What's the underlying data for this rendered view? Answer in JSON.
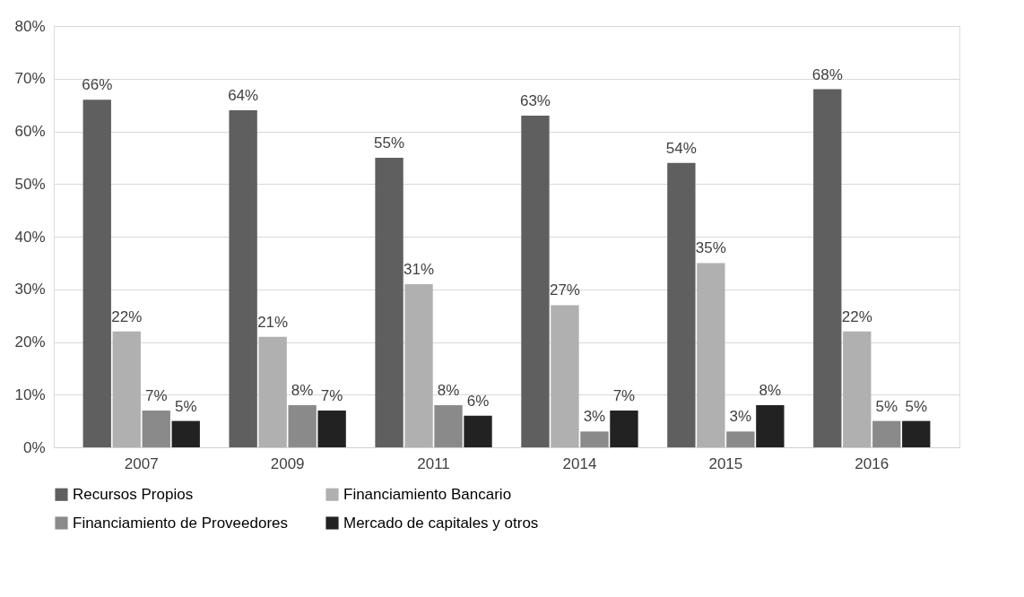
{
  "chart_data": {
    "type": "bar",
    "categories": [
      "2007",
      "2009",
      "2011",
      "2014",
      "2015",
      "2016"
    ],
    "series": [
      {
        "name": "Recursos Propios",
        "color": "#5f5f5f",
        "values": [
          66,
          64,
          55,
          63,
          54,
          68
        ],
        "value_labels": [
          "66%",
          "64%",
          "55%",
          "63%",
          "54%",
          "68%"
        ]
      },
      {
        "name": "Financiamiento Bancario",
        "color": "#b0b0b0",
        "values": [
          22,
          21,
          31,
          27,
          35,
          22
        ],
        "value_labels": [
          "22%",
          "21%",
          "31%",
          "27%",
          "35%",
          "22%"
        ]
      },
      {
        "name": "Financiamiento de Proveedores",
        "color": "#8a8a8a",
        "values": [
          7,
          8,
          8,
          3,
          3,
          5
        ],
        "value_labels": [
          "7%",
          "8%",
          "8%",
          "3%",
          "3%",
          "5%"
        ]
      },
      {
        "name": "Mercado de capitales y otros",
        "color": "#222222",
        "values": [
          5,
          7,
          6,
          7,
          8,
          5
        ],
        "value_labels": [
          "5%",
          "7%",
          "6%",
          "7%",
          "8%",
          "5%"
        ]
      }
    ],
    "ylim": [
      0,
      80
    ],
    "yticks": [
      {
        "value": 0,
        "label": "0%"
      },
      {
        "value": 10,
        "label": "10%"
      },
      {
        "value": 20,
        "label": "20%"
      },
      {
        "value": 30,
        "label": "30%"
      },
      {
        "value": 40,
        "label": "40%"
      },
      {
        "value": 50,
        "label": "50%"
      },
      {
        "value": 60,
        "label": "60%"
      },
      {
        "value": 70,
        "label": "70%"
      },
      {
        "value": 80,
        "label": "80%"
      }
    ],
    "grid": "y",
    "legend": "bottom"
  }
}
